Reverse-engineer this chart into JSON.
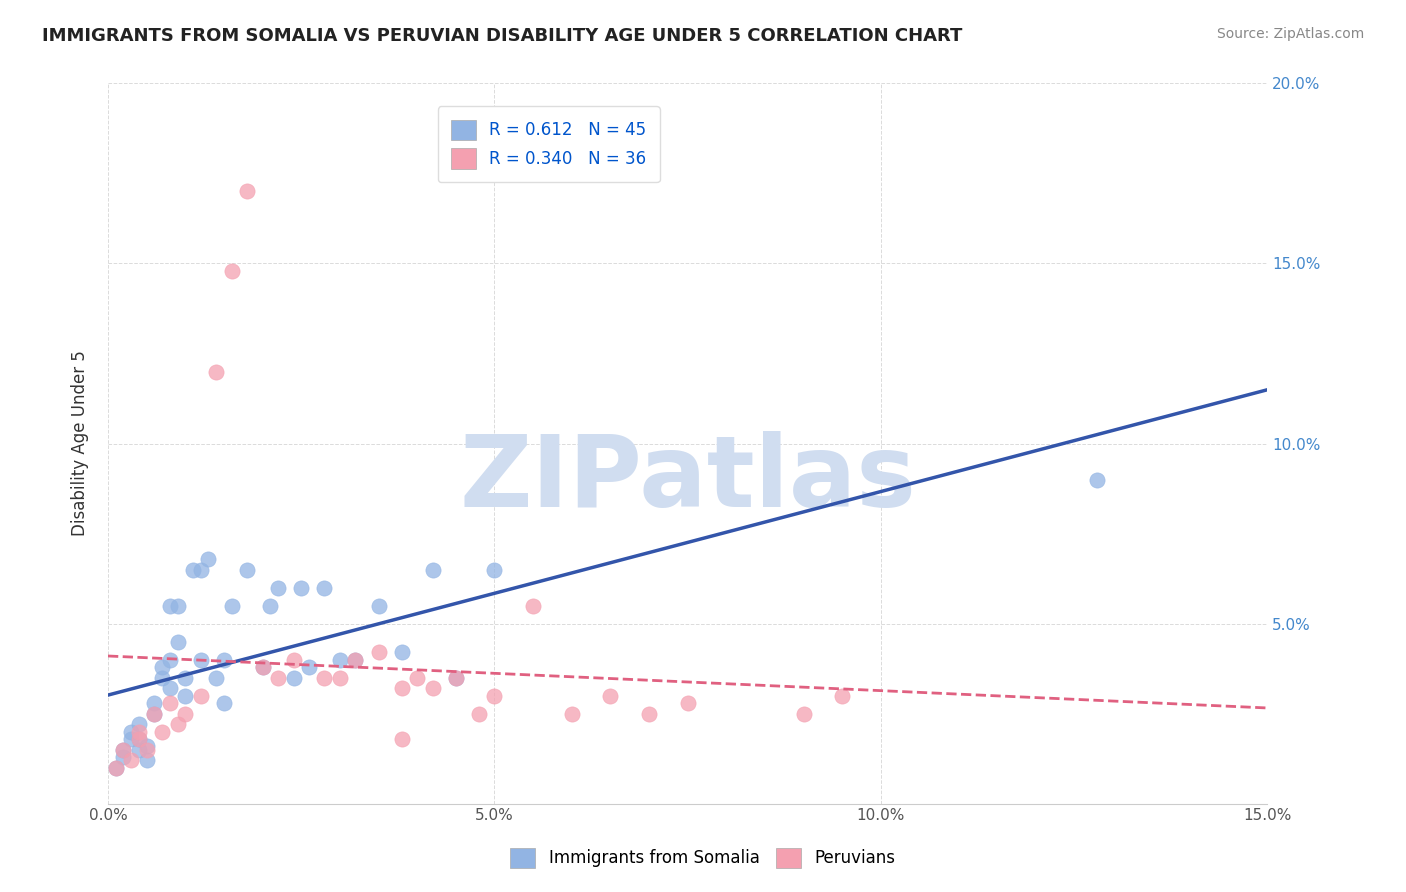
{
  "title": "IMMIGRANTS FROM SOMALIA VS PERUVIAN DISABILITY AGE UNDER 5 CORRELATION CHART",
  "source": "Source: ZipAtlas.com",
  "xlabel": "",
  "ylabel": "Disability Age Under 5",
  "xlim": [
    0,
    0.15
  ],
  "ylim": [
    0,
    0.2
  ],
  "xticks": [
    0.0,
    0.05,
    0.1,
    0.15
  ],
  "xticklabels": [
    "0.0%",
    "5.0%",
    "10.0%",
    "15.0%"
  ],
  "yticks_right": [
    0.0,
    0.05,
    0.1,
    0.15,
    0.2
  ],
  "yticklabels_right": [
    "",
    "5.0%",
    "10.0%",
    "15.0%",
    "20.0%"
  ],
  "somalia_R": 0.612,
  "somalia_N": 45,
  "peruvian_R": 0.34,
  "peruvian_N": 36,
  "somalia_color": "#92b4e3",
  "peruvian_color": "#f4a0b0",
  "somalia_line_color": "#3355aa",
  "peruvian_line_color": "#e06080",
  "watermark": "ZIPatlas",
  "watermark_color": "#d0ddf0",
  "legend_somalia": "Immigrants from Somalia",
  "legend_peruvian": "Peruvians",
  "somalia_x": [
    0.001,
    0.002,
    0.002,
    0.003,
    0.003,
    0.004,
    0.004,
    0.004,
    0.005,
    0.005,
    0.006,
    0.006,
    0.007,
    0.007,
    0.008,
    0.008,
    0.008,
    0.009,
    0.009,
    0.01,
    0.01,
    0.011,
    0.012,
    0.012,
    0.013,
    0.014,
    0.015,
    0.015,
    0.016,
    0.018,
    0.02,
    0.021,
    0.022,
    0.024,
    0.025,
    0.026,
    0.028,
    0.03,
    0.032,
    0.035,
    0.038,
    0.042,
    0.045,
    0.05,
    0.128
  ],
  "somalia_y": [
    0.01,
    0.013,
    0.015,
    0.018,
    0.02,
    0.015,
    0.018,
    0.022,
    0.012,
    0.016,
    0.025,
    0.028,
    0.035,
    0.038,
    0.032,
    0.04,
    0.055,
    0.045,
    0.055,
    0.03,
    0.035,
    0.065,
    0.065,
    0.04,
    0.068,
    0.035,
    0.028,
    0.04,
    0.055,
    0.065,
    0.038,
    0.055,
    0.06,
    0.035,
    0.06,
    0.038,
    0.06,
    0.04,
    0.04,
    0.055,
    0.042,
    0.065,
    0.035,
    0.065,
    0.09
  ],
  "peruvian_x": [
    0.001,
    0.002,
    0.003,
    0.004,
    0.004,
    0.005,
    0.006,
    0.007,
    0.008,
    0.009,
    0.01,
    0.012,
    0.014,
    0.016,
    0.018,
    0.02,
    0.022,
    0.024,
    0.028,
    0.03,
    0.032,
    0.035,
    0.038,
    0.04,
    0.042,
    0.045,
    0.05,
    0.055,
    0.06,
    0.065,
    0.07,
    0.075,
    0.09,
    0.095,
    0.038,
    0.048
  ],
  "peruvian_y": [
    0.01,
    0.015,
    0.012,
    0.018,
    0.02,
    0.015,
    0.025,
    0.02,
    0.028,
    0.022,
    0.025,
    0.03,
    0.12,
    0.148,
    0.17,
    0.038,
    0.035,
    0.04,
    0.035,
    0.035,
    0.04,
    0.042,
    0.032,
    0.035,
    0.032,
    0.035,
    0.03,
    0.055,
    0.025,
    0.03,
    0.025,
    0.028,
    0.025,
    0.03,
    0.018,
    0.025
  ]
}
